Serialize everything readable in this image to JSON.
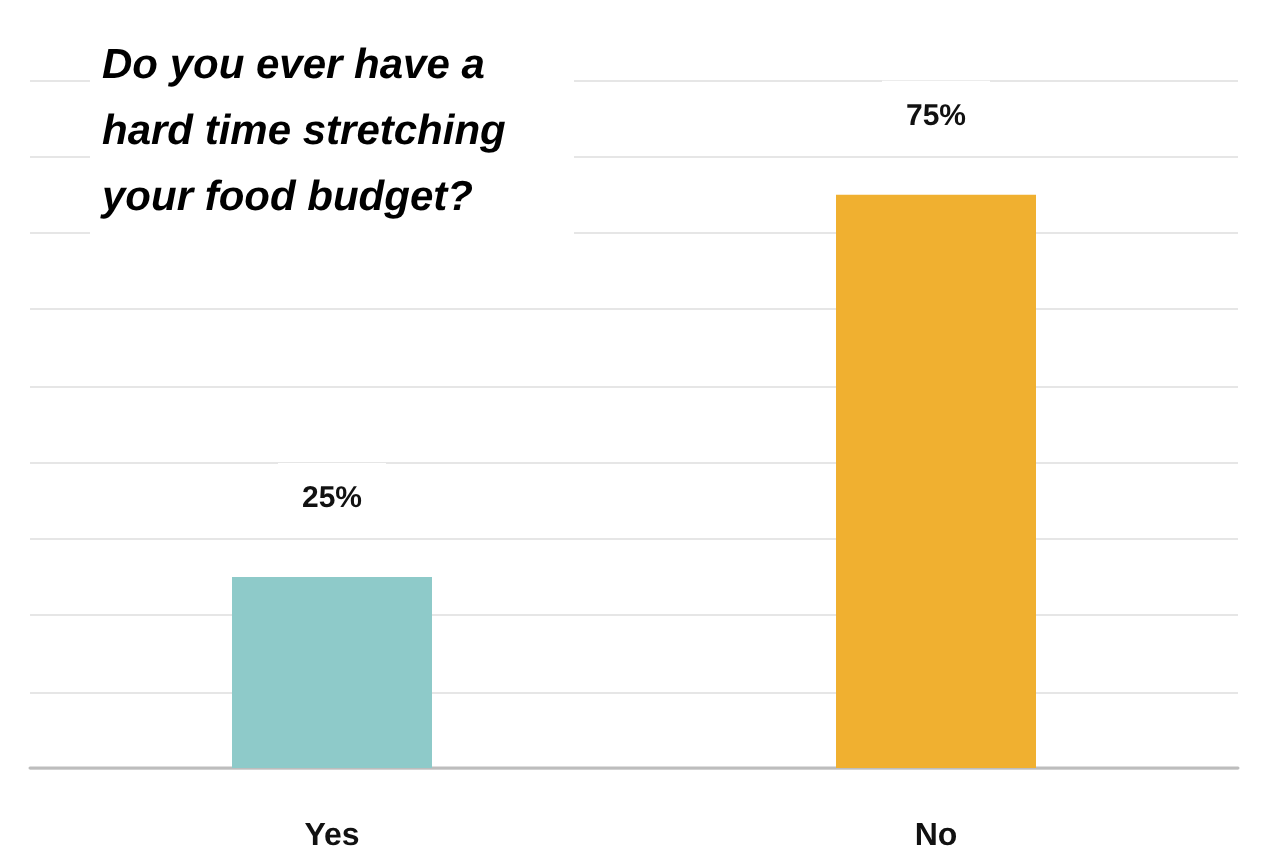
{
  "chart_data": {
    "type": "bar",
    "title": "Do you ever have a hard time stretching your food budget?",
    "categories": [
      "Yes",
      "No"
    ],
    "values": [
      25,
      75
    ],
    "colors": [
      "#8ecac9",
      "#f0b030"
    ],
    "value_labels": [
      "25%",
      "75%"
    ],
    "ylim": [
      0,
      90
    ],
    "yticks": [
      0,
      10,
      20,
      30,
      40,
      50,
      60,
      70,
      80,
      90
    ],
    "tick_labels": "x",
    "grid": "y"
  }
}
